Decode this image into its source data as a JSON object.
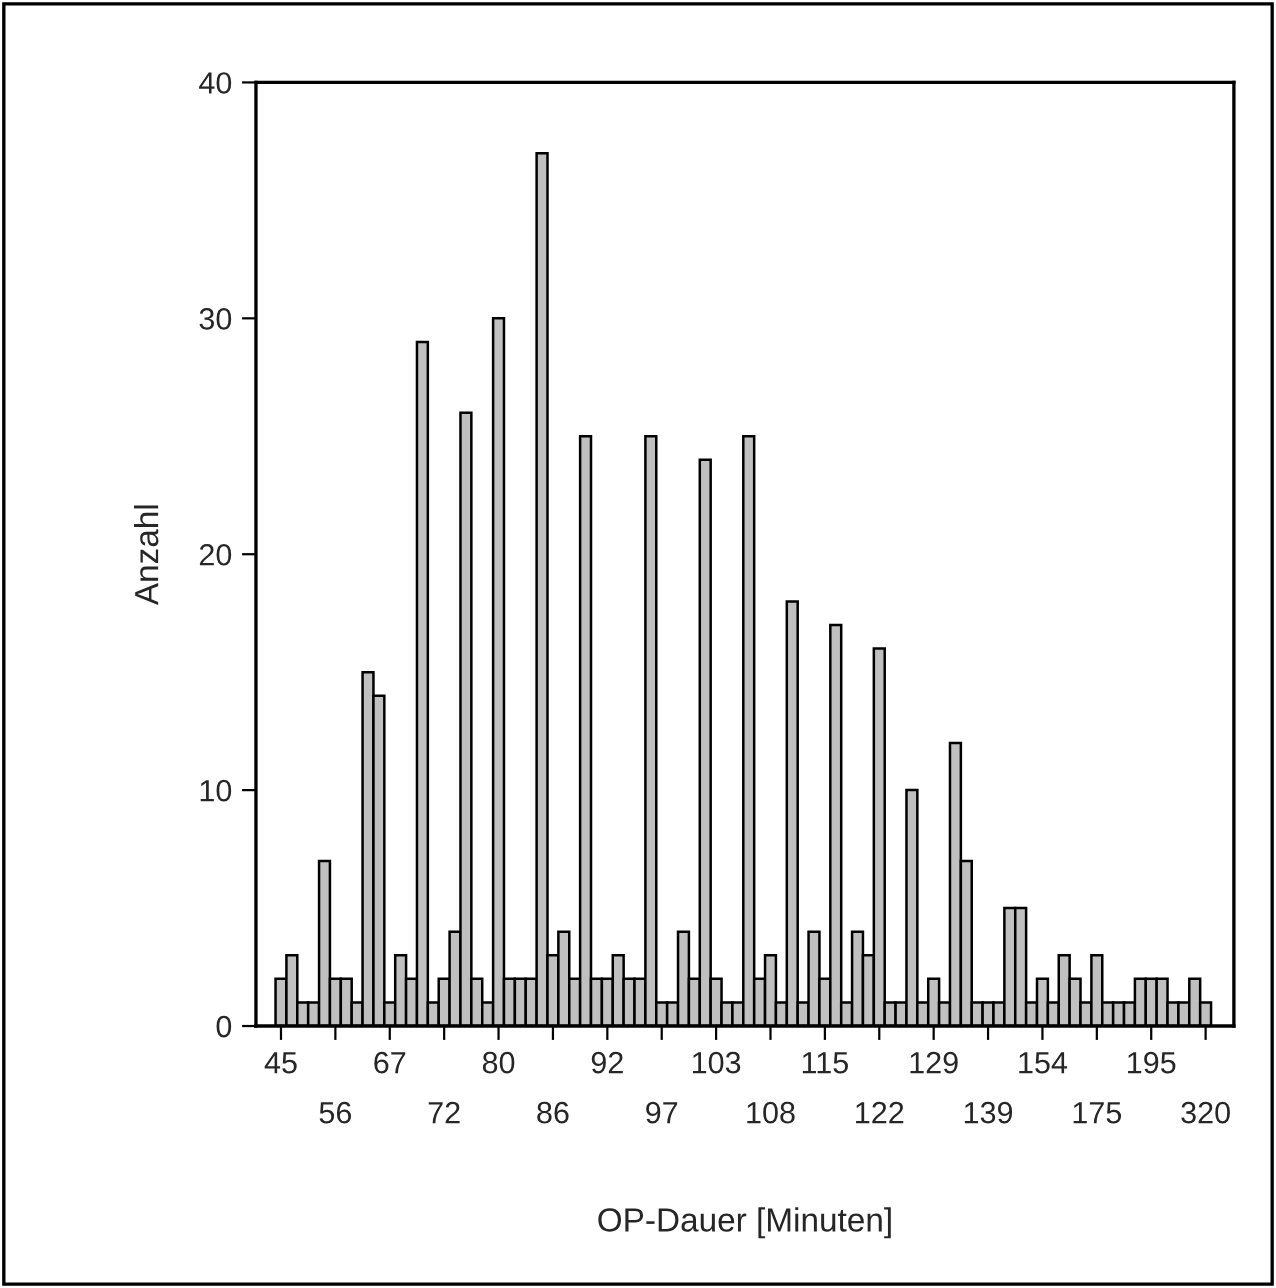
{
  "chart_data": {
    "type": "bar",
    "xlabel": "OP-Dauer [Minuten]",
    "ylabel": "Anzahl",
    "categories": [
      "45",
      null,
      null,
      null,
      null,
      "56",
      null,
      null,
      null,
      null,
      "67",
      null,
      null,
      null,
      null,
      "72",
      null,
      null,
      null,
      null,
      "80",
      null,
      null,
      null,
      null,
      "86",
      null,
      null,
      null,
      null,
      "92",
      null,
      null,
      null,
      null,
      "97",
      null,
      null,
      null,
      null,
      "103",
      null,
      null,
      null,
      null,
      "108",
      null,
      null,
      null,
      null,
      "115",
      null,
      null,
      null,
      null,
      "122",
      null,
      null,
      null,
      null,
      "129",
      null,
      null,
      null,
      null,
      "139",
      null,
      null,
      null,
      null,
      "154",
      null,
      null,
      null,
      null,
      "175",
      null,
      null,
      null,
      null,
      "195",
      null,
      null,
      null,
      null,
      "320"
    ],
    "values": [
      2,
      3,
      1,
      1,
      7,
      2,
      2,
      1,
      15,
      14,
      1,
      3,
      2,
      29,
      1,
      2,
      4,
      26,
      2,
      1,
      30,
      2,
      2,
      2,
      37,
      3,
      4,
      2,
      25,
      2,
      2,
      3,
      2,
      2,
      25,
      1,
      1,
      4,
      2,
      24,
      2,
      1,
      1,
      25,
      2,
      3,
      1,
      18,
      1,
      4,
      2,
      17,
      1,
      4,
      3,
      16,
      1,
      1,
      10,
      1,
      2,
      1,
      12,
      7,
      1,
      1,
      1,
      5,
      5,
      1,
      2,
      1,
      3,
      2,
      1,
      3,
      1,
      1,
      1,
      2,
      2,
      2,
      1,
      1,
      2,
      1
    ],
    "color": "#c0c0c0",
    "ylim": [
      0,
      40
    ],
    "yticks": [
      0,
      10,
      20,
      30,
      40
    ],
    "grid": false,
    "legend": false
  }
}
